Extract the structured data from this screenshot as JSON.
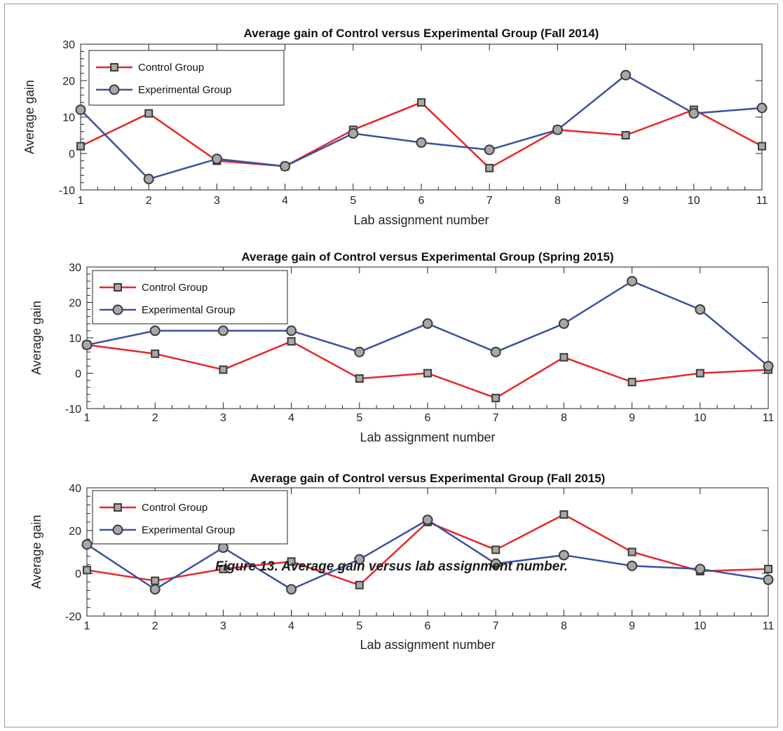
{
  "caption": "Figure 13. Average gain versus lab assignment number.",
  "colors": {
    "control": "#e8262a",
    "experimental": "#3a51a3",
    "marker_fill": "#a8a8a8",
    "marker_edge": "#3b3b3b"
  },
  "chart_data": [
    {
      "type": "line",
      "title": "Average gain of Control versus Experimental Group (Fall 2014)",
      "xlabel": "Lab assignment number",
      "ylabel": "Average gain",
      "x": [
        1,
        2,
        3,
        4,
        5,
        6,
        7,
        8,
        9,
        10,
        11
      ],
      "xlim": [
        1,
        11
      ],
      "ylim": [
        -10,
        30
      ],
      "yticks": [
        -10,
        0,
        10,
        20,
        30
      ],
      "legend_position": "top-left",
      "series": [
        {
          "name": "Control Group",
          "marker": "square",
          "values": [
            2,
            11,
            -2,
            -3.5,
            6.5,
            14,
            -4,
            6.5,
            5,
            12,
            2
          ]
        },
        {
          "name": "Experimental Group",
          "marker": "circle",
          "values": [
            12,
            -7,
            -1.5,
            -3.5,
            5.5,
            3,
            1,
            6.5,
            21.5,
            11,
            12.5
          ]
        }
      ]
    },
    {
      "type": "line",
      "title": "Average gain of Control versus Experimental Group (Spring 2015)",
      "xlabel": "Lab assignment number",
      "ylabel": "Average gain",
      "x": [
        1,
        2,
        3,
        4,
        5,
        6,
        7,
        8,
        9,
        10,
        11
      ],
      "xlim": [
        1,
        11
      ],
      "ylim": [
        -10,
        30
      ],
      "yticks": [
        -10,
        0,
        10,
        20,
        30
      ],
      "legend_position": "top-left",
      "series": [
        {
          "name": "Control Group",
          "marker": "square",
          "values": [
            8,
            5.5,
            1,
            9,
            -1.5,
            0,
            -7,
            4.5,
            -2.5,
            0,
            1
          ]
        },
        {
          "name": "Experimental Group",
          "marker": "circle",
          "values": [
            8,
            12,
            12,
            12,
            6,
            14,
            6,
            14,
            26,
            18,
            2
          ]
        }
      ]
    },
    {
      "type": "line",
      "title": "Average gain of Control versus Experimental Group (Fall 2015)",
      "xlabel": "Lab assignment number",
      "ylabel": "Average gain",
      "x": [
        1,
        2,
        3,
        4,
        5,
        6,
        7,
        8,
        9,
        10,
        11
      ],
      "xlim": [
        1,
        11
      ],
      "ylim": [
        -20,
        40
      ],
      "yticks": [
        -20,
        0,
        20,
        40
      ],
      "legend_position": "top-left",
      "series": [
        {
          "name": "Control Group",
          "marker": "square",
          "values": [
            1.5,
            -3.5,
            2,
            5.5,
            -5.5,
            24,
            11,
            27.5,
            10,
            1,
            2
          ]
        },
        {
          "name": "Experimental Group",
          "marker": "circle",
          "values": [
            13.5,
            -7.5,
            12,
            -7.5,
            6.5,
            25,
            4.5,
            8.5,
            3.5,
            2,
            -3
          ]
        }
      ]
    }
  ]
}
